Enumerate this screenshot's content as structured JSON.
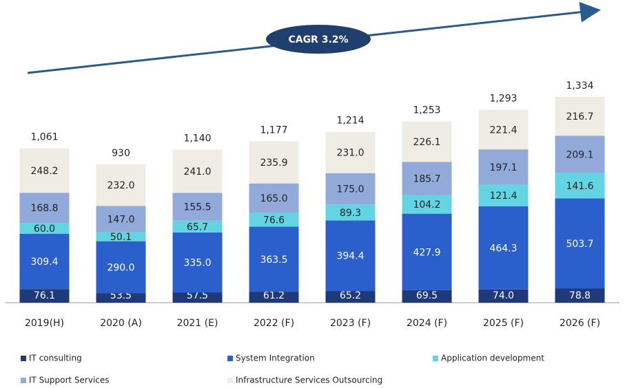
{
  "chart_data": {
    "type": "stacked_bar",
    "annotation": "CAGR 3.2%",
    "categories": [
      "2019(H)",
      "2020 (A)",
      "2021 (E)",
      "2022 (F)",
      "2023 (F)",
      "2024 (F)",
      "2025 (F)",
      "2026 (F)"
    ],
    "series": [
      {
        "name": "IT consulting",
        "color": "#1f3a7a",
        "values": [
          76.1,
          53.5,
          57.5,
          61.2,
          65.2,
          69.5,
          74.0,
          78.8
        ],
        "value_labels": [
          "76.1",
          "53.5",
          "57.5",
          "61.2",
          "65.2",
          "69.5",
          "74.0",
          "78.8"
        ]
      },
      {
        "name": "System Integration",
        "color": "#2b5fcc",
        "values": [
          309.4,
          290.0,
          335.0,
          363.5,
          394.4,
          427.9,
          464.3,
          503.7
        ],
        "value_labels": [
          "309.4",
          "290.0",
          "335.0",
          "363.5",
          "394.4",
          "427.9",
          "464.3",
          "503.7"
        ]
      },
      {
        "name": "Application development",
        "color": "#62d4e2",
        "values": [
          60.0,
          50.1,
          65.7,
          76.6,
          89.3,
          104.2,
          121.4,
          141.6
        ],
        "value_labels": [
          "60.0",
          "50.1",
          "65.7",
          "76.6",
          "89.3",
          "104.2",
          "121.4",
          "141.6"
        ]
      },
      {
        "name": "IT Support Services",
        "color": "#92aada",
        "values": [
          168.8,
          147.0,
          155.5,
          165.0,
          175.0,
          185.7,
          197.1,
          209.1
        ],
        "value_labels": [
          "168.8",
          "147.0",
          "155.5",
          "165.0",
          "175.0",
          "185.7",
          "197.1",
          "209.1"
        ]
      },
      {
        "name": "Infrastructure Services Outsourcing",
        "color": "#efece4",
        "values": [
          248.2,
          232.0,
          241.0,
          235.9,
          231.0,
          226.1,
          221.4,
          216.7
        ],
        "value_labels": [
          "248.2",
          "232.0",
          "241.0",
          "235.9",
          "231.0",
          "226.1",
          "221.4",
          "216.7"
        ]
      }
    ],
    "totals": {
      "values": [
        1061,
        930,
        1140,
        1177,
        1214,
        1253,
        1293,
        1334
      ],
      "value_labels": [
        "1,061",
        "930",
        "1,140",
        "1,177",
        "1,214",
        "1,253",
        "1,293",
        "1,334"
      ]
    }
  }
}
